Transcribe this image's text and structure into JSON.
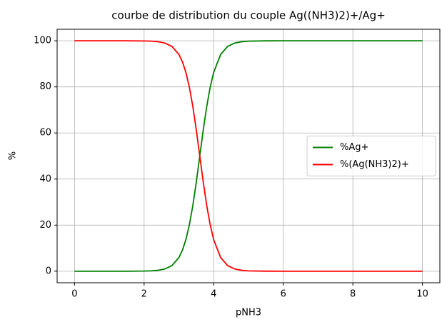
{
  "chart_data": {
    "type": "line",
    "title": "courbe de distribution du couple Ag((NH3)2)+/Ag+",
    "x_label": "pNH3",
    "y_label": "%",
    "x": [
      0,
      0.5,
      1,
      1.5,
      2,
      2.2,
      2.4,
      2.6,
      2.8,
      3.0,
      3.1,
      3.2,
      3.3,
      3.4,
      3.5,
      3.6,
      3.7,
      3.8,
      3.9,
      4.0,
      4.2,
      4.4,
      4.6,
      4.8,
      5,
      5.5,
      6,
      7,
      8,
      9,
      10
    ],
    "series": [
      {
        "name": "%Ag+",
        "color": "#008000",
        "values": [
          0,
          0,
          0,
          0.006,
          0.063,
          0.158,
          0.397,
          0.99,
          2.45,
          5.93,
          9.09,
          13.68,
          20.08,
          28.47,
          38.69,
          50,
          61.31,
          71.53,
          79.92,
          86.32,
          94.07,
          97.55,
          99.01,
          99.6,
          99.84,
          99.98,
          100,
          100,
          100,
          100,
          100
        ]
      },
      {
        "name": "%(Ag(NH3)2)+",
        "color": "#ff0000",
        "values": [
          100,
          100,
          100,
          99.994,
          99.937,
          99.842,
          99.603,
          99.01,
          97.55,
          94.07,
          90.91,
          86.32,
          79.92,
          71.53,
          61.31,
          50,
          38.69,
          28.47,
          20.08,
          13.68,
          5.93,
          2.45,
          0.99,
          0.4,
          0.16,
          0.02,
          0,
          0,
          0,
          0,
          0
        ]
      }
    ],
    "xlim": [
      -0.5,
      10.5
    ],
    "xticks": [
      0,
      2,
      4,
      6,
      8,
      10
    ],
    "ylim": [
      -5,
      105
    ],
    "yticks": [
      0,
      20,
      40,
      60,
      80,
      100
    ],
    "grid": true,
    "legend": "center right"
  }
}
